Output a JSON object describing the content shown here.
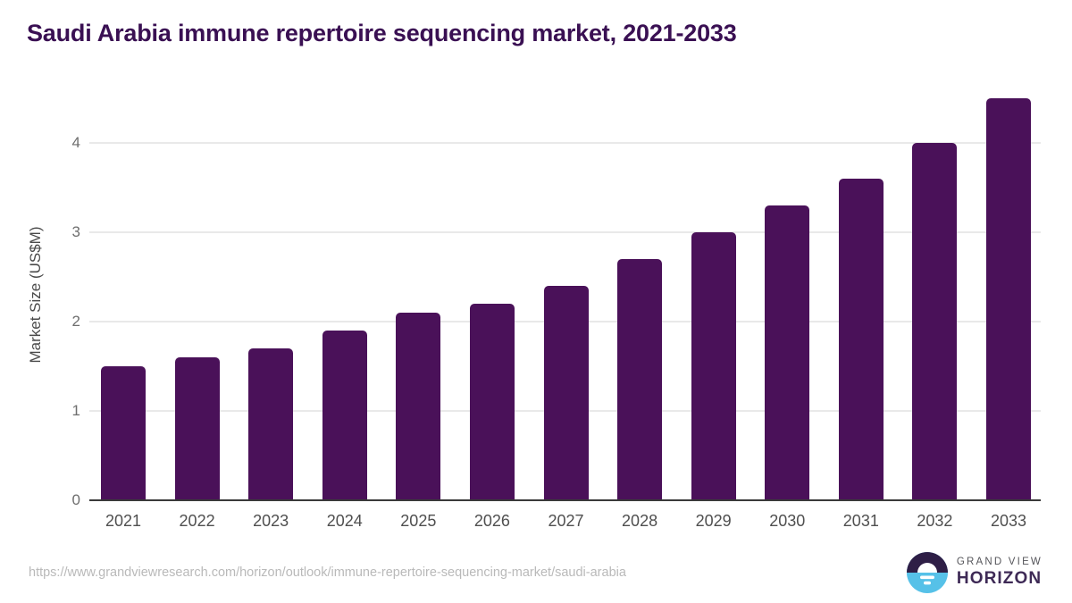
{
  "chart_data": {
    "type": "bar",
    "title": "Saudi Arabia immune repertoire sequencing market, 2021-2033",
    "categories": [
      "2021",
      "2022",
      "2023",
      "2024",
      "2025",
      "2026",
      "2027",
      "2028",
      "2029",
      "2030",
      "2031",
      "2032",
      "2033"
    ],
    "values": [
      1.5,
      1.6,
      1.7,
      1.9,
      2.1,
      2.2,
      2.4,
      2.7,
      3.0,
      3.3,
      3.6,
      4.0,
      4.5
    ],
    "xlabel": "",
    "ylabel": "Market Size (US$M)",
    "ylim": [
      0,
      4.6
    ],
    "yticks": [
      0,
      1,
      2,
      3,
      4
    ],
    "grid": "horizontal-only",
    "legend": "none",
    "bar_color": "#4a1159"
  },
  "footer": {
    "source_url": "https://www.grandviewresearch.com/horizon/outlook/immune-repertoire-sequencing-market/saudi-arabia",
    "logo": {
      "icon": "horizon-sun-icon",
      "brand_line1": "GRAND VIEW",
      "brand_line2": "HORIZON",
      "icon_top_color": "#2e1e46",
      "icon_bottom_color": "#56c1e8",
      "icon_sun_color": "#ffffff"
    }
  },
  "colors": {
    "background": "#ffffff",
    "title": "#3a1053",
    "bar": "#4a1159",
    "gridline": "#e9e9e9",
    "axis_line": "#3a3a3a",
    "y_tick_label": "#6e6e6e",
    "x_tick_label": "#4f4f4f",
    "y_axis_title": "#4a4a4a",
    "url_text": "#b9b9b9",
    "logo_line1": "#55555a",
    "logo_line2": "#3e2a56"
  }
}
